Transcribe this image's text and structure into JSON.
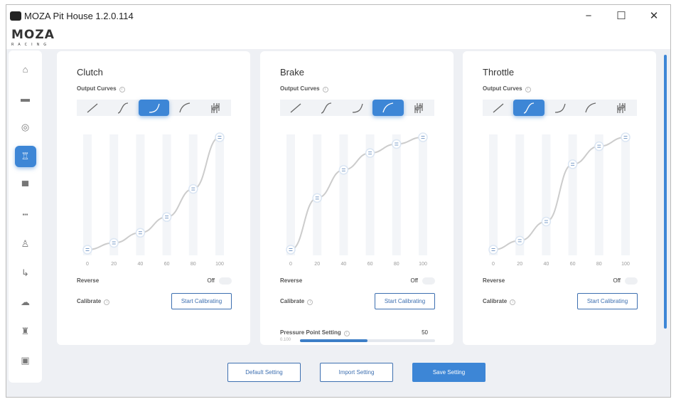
{
  "window": {
    "title": "MOZA Pit House 1.2.0.114",
    "minimize": "−",
    "maximize": "☐",
    "close": "✕"
  },
  "logo": {
    "brand": "MOZA",
    "sub": "RACING"
  },
  "sidebar": {
    "items": [
      {
        "icon": "home-icon",
        "glyph": "⌂"
      },
      {
        "icon": "wheelbase-icon",
        "glyph": "▬"
      },
      {
        "icon": "steering-wheel-icon",
        "glyph": "◎"
      },
      {
        "icon": "pedals-icon",
        "glyph": "♖",
        "active": true
      },
      {
        "icon": "dashboard-icon",
        "glyph": "▀"
      },
      {
        "icon": "shifter-bar-icon",
        "glyph": "┅"
      },
      {
        "icon": "joystick-icon",
        "glyph": "♙"
      },
      {
        "icon": "handbrake-icon",
        "glyph": "↳"
      },
      {
        "icon": "cloud-icon",
        "glyph": "☁"
      },
      {
        "icon": "hub-icon",
        "glyph": "♜"
      },
      {
        "icon": "display-icon",
        "glyph": "▣"
      }
    ]
  },
  "accent": "#3d86d6",
  "panels": [
    {
      "title": "Clutch",
      "output_curves": "Output Curves",
      "selected_curve": 2,
      "reverse_label": "Reverse",
      "reverse_state": "Off",
      "calibrate_label": "Calibrate",
      "calibrate_button": "Start Calibrating"
    },
    {
      "title": "Brake",
      "output_curves": "Output Curves",
      "selected_curve": 3,
      "reverse_label": "Reverse",
      "reverse_state": "Off",
      "calibrate_label": "Calibrate",
      "calibrate_button": "Start Calibrating",
      "pressure_point": {
        "label": "Pressure Point Setting",
        "value": "50",
        "min_label": "0.100",
        "fill_percent": 50
      }
    },
    {
      "title": "Throttle",
      "output_curves": "Output Curves",
      "selected_curve": 1,
      "reverse_label": "Reverse",
      "reverse_state": "Off",
      "calibrate_label": "Calibrate",
      "calibrate_button": "Start Calibrating"
    }
  ],
  "curve_types": [
    "linear",
    "s-curve",
    "exponential",
    "logarithmic",
    "custom"
  ],
  "chart_data": [
    {
      "type": "line",
      "name": "Clutch",
      "x": [
        0,
        20,
        40,
        60,
        80,
        100
      ],
      "y": [
        0,
        6,
        15,
        29,
        54,
        100
      ],
      "xlim": [
        0,
        100
      ],
      "ylim": [
        0,
        100
      ],
      "tick_labels": [
        "0",
        "20",
        "40",
        "60",
        "80",
        "100"
      ]
    },
    {
      "type": "line",
      "name": "Brake",
      "x": [
        0,
        20,
        40,
        60,
        80,
        100
      ],
      "y": [
        0,
        46,
        71,
        86,
        94,
        100
      ],
      "xlim": [
        0,
        100
      ],
      "ylim": [
        0,
        100
      ],
      "tick_labels": [
        "0",
        "20",
        "40",
        "60",
        "80",
        "100"
      ]
    },
    {
      "type": "line",
      "name": "Throttle",
      "x": [
        0,
        20,
        40,
        60,
        80,
        100
      ],
      "y": [
        0,
        8,
        25,
        76,
        92,
        100
      ],
      "xlim": [
        0,
        100
      ],
      "ylim": [
        0,
        100
      ],
      "tick_labels": [
        "0",
        "20",
        "40",
        "60",
        "80",
        "100"
      ]
    }
  ],
  "footer": {
    "default": "Default Setting",
    "import": "Import Setting",
    "save": "Save Setting"
  }
}
